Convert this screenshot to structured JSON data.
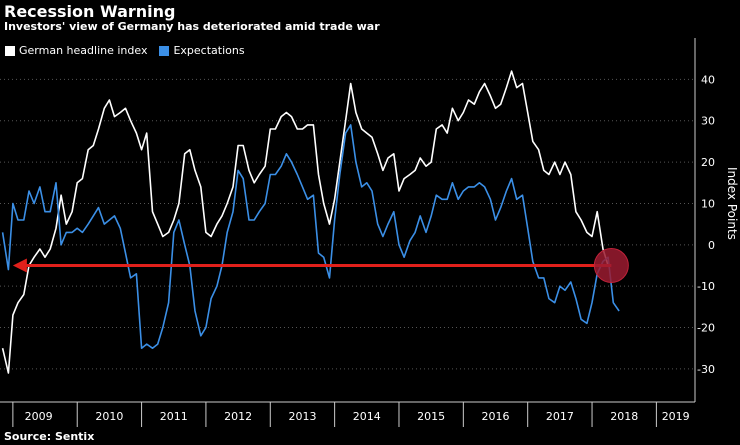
{
  "colors": {
    "background": "#000000",
    "headline": "#ffffff",
    "expectations": "#3b8fe6",
    "arrow": "#e0201b",
    "marker": "#9b1b30",
    "grid": "#555555"
  },
  "chart_data": {
    "type": "line",
    "title": "Recession Warning",
    "subtitle": "Investors' view of Germany has deteriorated amid trade war",
    "source": "Source: Sentix",
    "ylabel": "Index Points",
    "ylim": [
      -38,
      50
    ],
    "yticks": [
      40,
      30,
      20,
      10,
      0,
      -10,
      -20,
      -30
    ],
    "xlim": [
      2008.8,
      2019.6
    ],
    "year_ticks": [
      2009,
      2010,
      2011,
      2012,
      2013,
      2014,
      2015,
      2016,
      2017,
      2018,
      2019
    ],
    "year_labels": [
      "2009",
      "2010",
      "2011",
      "2012",
      "2013",
      "2014",
      "2015",
      "2016",
      "2017",
      "2018",
      "2019"
    ],
    "series": [
      {
        "name": "German headline index",
        "color": "#ffffff",
        "points": [
          [
            2008.84,
            -25
          ],
          [
            2008.93,
            -31
          ],
          [
            2009.0,
            -17
          ],
          [
            2009.08,
            -14
          ],
          [
            2009.17,
            -12
          ],
          [
            2009.25,
            -5
          ],
          [
            2009.33,
            -3
          ],
          [
            2009.42,
            -1
          ],
          [
            2009.5,
            -3
          ],
          [
            2009.58,
            -1
          ],
          [
            2009.67,
            4
          ],
          [
            2009.75,
            12
          ],
          [
            2009.83,
            5
          ],
          [
            2009.92,
            8
          ],
          [
            2010.0,
            15
          ],
          [
            2010.08,
            16
          ],
          [
            2010.17,
            23
          ],
          [
            2010.25,
            24
          ],
          [
            2010.33,
            28
          ],
          [
            2010.42,
            33
          ],
          [
            2010.5,
            35
          ],
          [
            2010.58,
            31
          ],
          [
            2010.67,
            32
          ],
          [
            2010.75,
            33
          ],
          [
            2010.83,
            30
          ],
          [
            2010.92,
            27
          ],
          [
            2011.0,
            23
          ],
          [
            2011.08,
            27
          ],
          [
            2011.17,
            8
          ],
          [
            2011.25,
            5
          ],
          [
            2011.33,
            2
          ],
          [
            2011.42,
            3
          ],
          [
            2011.5,
            6
          ],
          [
            2011.58,
            10
          ],
          [
            2011.67,
            22
          ],
          [
            2011.75,
            23
          ],
          [
            2011.83,
            18
          ],
          [
            2011.92,
            14
          ],
          [
            2012.0,
            3
          ],
          [
            2012.08,
            2
          ],
          [
            2012.17,
            5
          ],
          [
            2012.25,
            7
          ],
          [
            2012.33,
            10
          ],
          [
            2012.42,
            14
          ],
          [
            2012.5,
            24
          ],
          [
            2012.58,
            24
          ],
          [
            2012.67,
            18
          ],
          [
            2012.75,
            15
          ],
          [
            2012.83,
            17
          ],
          [
            2012.92,
            19
          ],
          [
            2013.0,
            28
          ],
          [
            2013.08,
            28
          ],
          [
            2013.17,
            31
          ],
          [
            2013.25,
            32
          ],
          [
            2013.33,
            31
          ],
          [
            2013.42,
            28
          ],
          [
            2013.5,
            28
          ],
          [
            2013.58,
            29
          ],
          [
            2013.67,
            29
          ],
          [
            2013.75,
            17
          ],
          [
            2013.83,
            10
          ],
          [
            2013.92,
            5
          ],
          [
            2014.0,
            11
          ],
          [
            2014.08,
            20
          ],
          [
            2014.17,
            30
          ],
          [
            2014.25,
            39
          ],
          [
            2014.33,
            32
          ],
          [
            2014.42,
            28
          ],
          [
            2014.5,
            27
          ],
          [
            2014.58,
            26
          ],
          [
            2014.67,
            22
          ],
          [
            2014.75,
            18
          ],
          [
            2014.83,
            21
          ],
          [
            2014.92,
            22
          ],
          [
            2015.0,
            13
          ],
          [
            2015.08,
            16
          ],
          [
            2015.17,
            17
          ],
          [
            2015.25,
            18
          ],
          [
            2015.33,
            21
          ],
          [
            2015.42,
            19
          ],
          [
            2015.5,
            20
          ],
          [
            2015.58,
            28
          ],
          [
            2015.67,
            29
          ],
          [
            2015.75,
            27
          ],
          [
            2015.83,
            33
          ],
          [
            2015.92,
            30
          ],
          [
            2016.0,
            32
          ],
          [
            2016.08,
            35
          ],
          [
            2016.17,
            34
          ],
          [
            2016.25,
            37
          ],
          [
            2016.33,
            39
          ],
          [
            2016.42,
            36
          ],
          [
            2016.5,
            33
          ],
          [
            2016.58,
            34
          ],
          [
            2016.67,
            38
          ],
          [
            2016.75,
            42
          ],
          [
            2016.83,
            38
          ],
          [
            2016.92,
            39
          ],
          [
            2017.0,
            32
          ],
          [
            2017.08,
            25
          ],
          [
            2017.17,
            23
          ],
          [
            2017.25,
            18
          ],
          [
            2017.33,
            17
          ],
          [
            2017.42,
            20
          ],
          [
            2017.5,
            17
          ],
          [
            2017.58,
            20
          ],
          [
            2017.67,
            17
          ],
          [
            2017.75,
            8
          ],
          [
            2017.83,
            6
          ],
          [
            2017.92,
            3
          ],
          [
            2018.0,
            2
          ],
          [
            2018.08,
            8
          ],
          [
            2018.17,
            -1
          ],
          [
            2018.25,
            -5
          ]
        ]
      },
      {
        "name": "Expectations",
        "color": "#3b8fe6",
        "points": [
          [
            2008.84,
            3
          ],
          [
            2008.93,
            -6
          ],
          [
            2009.0,
            10
          ],
          [
            2009.08,
            6
          ],
          [
            2009.17,
            6
          ],
          [
            2009.25,
            13
          ],
          [
            2009.33,
            10
          ],
          [
            2009.42,
            14
          ],
          [
            2009.5,
            8
          ],
          [
            2009.58,
            8
          ],
          [
            2009.67,
            15
          ],
          [
            2009.75,
            0
          ],
          [
            2009.83,
            3
          ],
          [
            2009.92,
            3
          ],
          [
            2010.0,
            4
          ],
          [
            2010.08,
            3
          ],
          [
            2010.17,
            5
          ],
          [
            2010.25,
            7
          ],
          [
            2010.33,
            9
          ],
          [
            2010.42,
            5
          ],
          [
            2010.5,
            6
          ],
          [
            2010.58,
            7
          ],
          [
            2010.67,
            4
          ],
          [
            2010.75,
            -2
          ],
          [
            2010.83,
            -8
          ],
          [
            2010.92,
            -7
          ],
          [
            2011.0,
            -25
          ],
          [
            2011.08,
            -24
          ],
          [
            2011.17,
            -25
          ],
          [
            2011.25,
            -24
          ],
          [
            2011.33,
            -20
          ],
          [
            2011.42,
            -14
          ],
          [
            2011.5,
            3
          ],
          [
            2011.58,
            6
          ],
          [
            2011.67,
            0
          ],
          [
            2011.75,
            -5
          ],
          [
            2011.83,
            -16
          ],
          [
            2011.92,
            -22
          ],
          [
            2012.0,
            -20
          ],
          [
            2012.08,
            -13
          ],
          [
            2012.17,
            -10
          ],
          [
            2012.25,
            -5
          ],
          [
            2012.33,
            3
          ],
          [
            2012.42,
            8
          ],
          [
            2012.5,
            18
          ],
          [
            2012.58,
            16
          ],
          [
            2012.67,
            6
          ],
          [
            2012.75,
            6
          ],
          [
            2012.83,
            8
          ],
          [
            2012.92,
            10
          ],
          [
            2013.0,
            17
          ],
          [
            2013.08,
            17
          ],
          [
            2013.17,
            19
          ],
          [
            2013.25,
            22
          ],
          [
            2013.33,
            20
          ],
          [
            2013.42,
            17
          ],
          [
            2013.5,
            14
          ],
          [
            2013.58,
            11
          ],
          [
            2013.67,
            12
          ],
          [
            2013.75,
            -2
          ],
          [
            2013.83,
            -3
          ],
          [
            2013.92,
            -8
          ],
          [
            2014.0,
            6
          ],
          [
            2014.08,
            17
          ],
          [
            2014.17,
            27
          ],
          [
            2014.25,
            29
          ],
          [
            2014.33,
            20
          ],
          [
            2014.42,
            14
          ],
          [
            2014.5,
            15
          ],
          [
            2014.58,
            13
          ],
          [
            2014.67,
            5
          ],
          [
            2014.75,
            2
          ],
          [
            2014.83,
            5
          ],
          [
            2014.92,
            8
          ],
          [
            2015.0,
            0
          ],
          [
            2015.08,
            -3
          ],
          [
            2015.17,
            1
          ],
          [
            2015.25,
            3
          ],
          [
            2015.33,
            7
          ],
          [
            2015.42,
            3
          ],
          [
            2015.5,
            7
          ],
          [
            2015.58,
            12
          ],
          [
            2015.67,
            11
          ],
          [
            2015.75,
            11
          ],
          [
            2015.83,
            15
          ],
          [
            2015.92,
            11
          ],
          [
            2016.0,
            13
          ],
          [
            2016.08,
            14
          ],
          [
            2016.17,
            14
          ],
          [
            2016.25,
            15
          ],
          [
            2016.33,
            14
          ],
          [
            2016.42,
            11
          ],
          [
            2016.5,
            6
          ],
          [
            2016.58,
            9
          ],
          [
            2016.67,
            13
          ],
          [
            2016.75,
            16
          ],
          [
            2016.83,
            11
          ],
          [
            2016.92,
            12
          ],
          [
            2017.0,
            4
          ],
          [
            2017.08,
            -4
          ],
          [
            2017.17,
            -8
          ],
          [
            2017.25,
            -8
          ],
          [
            2017.33,
            -13
          ],
          [
            2017.42,
            -14
          ],
          [
            2017.5,
            -10
          ],
          [
            2017.58,
            -11
          ],
          [
            2017.67,
            -9
          ],
          [
            2017.75,
            -13
          ],
          [
            2017.83,
            -18
          ],
          [
            2017.92,
            -19
          ],
          [
            2018.0,
            -14
          ],
          [
            2018.08,
            -7
          ],
          [
            2018.17,
            -4
          ],
          [
            2018.25,
            -3
          ],
          [
            2018.33,
            -14
          ],
          [
            2018.42,
            -16
          ]
        ]
      }
    ],
    "annotation": {
      "type": "arrow",
      "level": -5,
      "from_x": 2018.3,
      "to_x": 2009.0,
      "marker_x": 2018.3,
      "marker_y": -5
    }
  }
}
